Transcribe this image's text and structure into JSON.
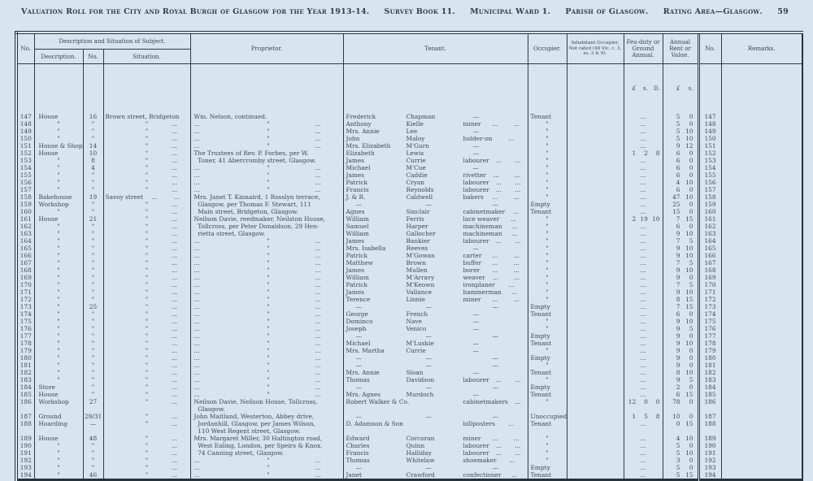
{
  "page": {
    "title_segments": [
      "Valuation Roll for the City and Royal Burgh of Glasgow for the Year 1913-14.",
      "Survey Book 11.",
      "Municipal Ward 1.",
      "Parish of Glasgow.",
      "Rating Area—Glasgow."
    ],
    "page_number": "59"
  },
  "table": {
    "header": {
      "no_left": "No.",
      "desc_sit_group": "Description and Situation of Subject.",
      "description": "Description.",
      "no_mid": "No.",
      "situation": "Situation.",
      "proprietor": "Proprietor.",
      "tenant": "Tenant.",
      "occupier": "Occupier.",
      "inhabitant": "Inhabitant Occupier, Not rated (48 Vic. c. 3, ss. 3 & 9).",
      "feu": "Feu-duty or Ground Annual.",
      "rent": "Annual Rent or Value.",
      "no_right": "No.",
      "remarks": "Remarks.",
      "feu_units": [
        "£",
        "s.",
        "D."
      ],
      "rent_units": [
        "£",
        "s."
      ]
    },
    "rows": [
      [
        "147",
        "House",
        "16",
        "Brown street, Bridgeton",
        "Wm. Nelson, continued.",
        "Frederick",
        "Chapman",
        "—",
        "Tenant",
        "...",
        "5 0",
        "147"
      ],
      [
        "148",
        "\"",
        "\"",
        "|\"|...",
        "...|\"|...",
        "Anthony",
        "Kielle",
        "miner|...|...",
        "\"",
        "...",
        "5 0",
        "148"
      ],
      [
        "149",
        "\"",
        "\"",
        "|\"|...",
        "...|\"|...",
        "Mrs. Annie",
        "Lee",
        "—",
        "\"",
        "...",
        "5 10",
        "149"
      ],
      [
        "150",
        "\"",
        "\"",
        "|\"|...",
        "...|\"|...",
        "John",
        "Maloy",
        "holder-on|...",
        "\"",
        "...",
        "5 10",
        "150"
      ],
      [
        "151",
        "House & Shop",
        "14",
        "|\"|...",
        "...|\"|...",
        "Mrs. Elizabeth",
        "M'Gurn",
        "—",
        "\"",
        "...",
        "9 12",
        "151"
      ],
      [
        "152",
        "House",
        "10",
        "|\"|...",
        "The Trustees of Rev. P. Forbes, per W.",
        "Elizabeth",
        "Lewis",
        "—",
        "\"",
        "1 2 8",
        "6 0",
        "152"
      ],
      [
        "153",
        "\"",
        "8",
        "|\"|...",
        "  Toner, 41 Abercromby street, Glasgow.",
        "James",
        "Currie",
        "labourer|...|...",
        "\"",
        "...",
        "6 0",
        "153"
      ],
      [
        "154",
        "\"",
        "4",
        "|\"|...",
        "...|\"|...",
        "Michael",
        "M'Cue",
        "—",
        "\"",
        "...",
        "6 0",
        "154"
      ],
      [
        "155",
        "\"",
        "\"",
        "|\"|...",
        "...|\"|...",
        "James",
        "Caddie",
        "rivetter|...|...",
        "\"",
        "...",
        "6 0",
        "155"
      ],
      [
        "156",
        "\"",
        "\"",
        "|\"|...",
        "...|\"|...",
        "Patrick",
        "Cryan",
        "labourer|...|...",
        "\"",
        "...",
        "4 10",
        "156"
      ],
      [
        "157",
        "\"",
        "\"",
        "|\"|...",
        "...|\"|...",
        "Francis",
        "Reynolds",
        "labourer|...|...",
        "\"",
        "...",
        "6 0",
        "157"
      ],
      [
        "158",
        "Bakehouse",
        "19",
        "Savoy street|...|...",
        "Mrs. Janet T. Kinnaird, 1 Rosslyn terrace,",
        "J. & R.",
        "Caldwell",
        "bakers|...|...",
        "\"",
        "...",
        "47 10",
        "158"
      ],
      [
        "159",
        "Workshop",
        "\"",
        "|\"|...",
        "  Glasgow, per Thomas F. Stewart, 111",
        "—",
        "—",
        "—",
        "Empty",
        "...",
        "25 0",
        "159"
      ],
      [
        "160",
        "\"",
        "\"",
        "|\"|...",
        "  Main street, Bridgeton, Glasgow.",
        "Agnes",
        "Sinclair",
        "cabinetmaker|...",
        "Tenant",
        "...",
        "15 0",
        "160"
      ],
      [
        "161",
        "House",
        "21",
        "|\"|...",
        "Neilson Davie, reedmaker, Neilston House,",
        "William",
        "Ferris",
        "lace weaver|...",
        "\"",
        "2 19 10",
        "7 15",
        "161"
      ],
      [
        "162",
        "\"",
        "\"",
        "|\"|...",
        "  Tollcross, per Peter Donaldson, 29 Hen-",
        "Samuel",
        "Harper",
        "machineman|...",
        "\"",
        "...",
        "6 0",
        "162"
      ],
      [
        "163",
        "\"",
        "\"",
        "|\"|...",
        "  rietta street, Glasgow.",
        "William",
        "Gallocher",
        "machineman|...",
        "\"",
        "...",
        "9 10",
        "163"
      ],
      [
        "164",
        "\"",
        "\"",
        "|\"|...",
        "...|\"|...",
        "James",
        "Bankier",
        "labourer|...|...",
        "\"",
        "...",
        "7 5",
        "164"
      ],
      [
        "165",
        "\"",
        "\"",
        "|\"|...",
        "...|\"|...",
        "Mrs. Isabella",
        "Reeves",
        "—",
        "\"",
        "...",
        "9 10",
        "165"
      ],
      [
        "166",
        "\"",
        "\"",
        "|\"|...",
        "...|\"|...",
        "Patrick",
        "M'Gowan",
        "carter|...|...",
        "\"",
        "...",
        "9 10",
        "166"
      ],
      [
        "167",
        "\"",
        "\"",
        "|\"|...",
        "...|\"|...",
        "Matthew",
        "Brown",
        "buffer|...|...",
        "\"",
        "...",
        "7 5",
        "167"
      ],
      [
        "168",
        "\"",
        "\"",
        "|\"|...",
        "...|\"|...",
        "James",
        "Mullen",
        "borer|...|...",
        "\"",
        "...",
        "9 10",
        "168"
      ],
      [
        "169",
        "\"",
        "\"",
        "|\"|...",
        "...|\"|...",
        "William",
        "M'Arravy",
        "weaver|...|...",
        "\"",
        "...",
        "9 0",
        "169"
      ],
      [
        "170",
        "\"",
        "\"",
        "|\"|...",
        "...|\"|...",
        "Patrick",
        "M'Keown",
        "ironplaner|...",
        "\"",
        "...",
        "7 5",
        "170"
      ],
      [
        "171",
        "\"",
        "\"",
        "|\"|...",
        "...|\"|...",
        "James",
        "Vallance",
        "hammerman|...",
        "\"",
        "...",
        "9 10",
        "171"
      ],
      [
        "172",
        "\"",
        "\"",
        "|\"|...",
        "...|\"|...",
        "Terence",
        "Linnie",
        "miner|...|...",
        "\"",
        "...",
        "8 15",
        "172"
      ],
      [
        "173",
        "\"",
        "25",
        "|\"|...",
        "...|\"|...",
        "—",
        "—",
        "—",
        "Empty",
        "...",
        "7 15",
        "173"
      ],
      [
        "174",
        "\"",
        "\"",
        "|\"|...",
        "...|\"|...",
        "George",
        "French",
        "—",
        "Tenant",
        "...",
        "6 0",
        "174"
      ],
      [
        "175",
        "\"",
        "\"",
        "|\"|...",
        "...|\"|...",
        "Dominco",
        "Nave",
        "—",
        "\"",
        "...",
        "9 10",
        "175"
      ],
      [
        "176",
        "\"",
        "\"",
        "|\"|...",
        "...|\"|...",
        "Joseph",
        "Venico",
        "—",
        "\"",
        "...",
        "9 5",
        "176"
      ],
      [
        "177",
        "\"",
        "\"",
        "|\"|...",
        "...|\"|...",
        "—",
        "—",
        "—",
        "Empty",
        "...",
        "9 0",
        "177"
      ],
      [
        "178",
        "\"",
        "\"",
        "|\"|...",
        "...|\"|...",
        "Michael",
        "M'Luskie",
        "—",
        "Tenant",
        "...",
        "9 10",
        "178"
      ],
      [
        "179",
        "\"",
        "\"",
        "|\"|...",
        "...|\"|...",
        "Mrs. Martha",
        "Currie",
        "—",
        "\"",
        "...",
        "9 0",
        "179"
      ],
      [
        "180",
        "\"",
        "\"",
        "|\"|...",
        "...|\"|...",
        "—",
        "—",
        "—",
        "Empty",
        "...",
        "9 0",
        "180"
      ],
      [
        "181",
        "\"",
        "\"",
        "|\"|...",
        "...|\"|...",
        "—",
        "—",
        "—",
        "\"",
        "...",
        "9 0",
        "181"
      ],
      [
        "182",
        "\"",
        "\"",
        "|\"|...",
        "...|\"|...",
        "Mrs. Annie",
        "Sloan",
        "—",
        "Tenant",
        "...",
        "8 10",
        "182"
      ],
      [
        "183",
        "\"",
        "\"",
        "|\"|...",
        "...|\"|...",
        "Thomas",
        "Davidson",
        "labourer|...|...",
        "\"",
        "...",
        "9 5",
        "183"
      ],
      [
        "184",
        "Store",
        "\"",
        "|\"|...",
        "...|\"|...",
        "—",
        "—",
        "—",
        "Empty",
        "...",
        "2 0",
        "184"
      ],
      [
        "185",
        "House",
        "\"",
        "|\"|...",
        "...|\"|...",
        "Mrs. Agnes",
        "Murdoch",
        "—",
        "Tenant",
        "...",
        "6 15",
        "185"
      ],
      [
        "186",
        "Workshop",
        "27",
        "|\"|...",
        "Neilson Davie, Neilson House, Tollcross,",
        "Robert Walker & Co.",
        "",
        "cabinetmakers|...",
        "\"",
        "12 0 0",
        "78 0",
        "186"
      ],
      [
        "",
        "",
        "",
        "",
        "  Glasgow.",
        "",
        "",
        "",
        "",
        "",
        "",
        ""
      ],
      [
        "187",
        "Ground",
        "29/31",
        "|\"|...",
        "John Maitland, Westerton, Abbey drive,",
        "—",
        "—",
        "—",
        "Unoccupied",
        "1 5 8",
        "10 0",
        "187"
      ],
      [
        "188",
        "Hoarding",
        "—",
        "|\"|...",
        "  Jordanhill, Glasgow, per James Wilson,",
        "D. Adamson & Son",
        "",
        "billposters|...",
        "Tenant",
        "...",
        "0 15",
        "188"
      ],
      [
        "",
        "",
        "",
        "",
        "  110 West Regent street, Glasgow.",
        "",
        "",
        "",
        "",
        "",
        "",
        ""
      ],
      [
        "189",
        "House",
        "48",
        "|\"|...",
        "Mrs. Margaret Miller, 30 Haltington road,",
        "Edward",
        "Corcoran",
        "miner|...|...",
        "\"",
        "...",
        "4 10",
        "189"
      ],
      [
        "190",
        "\"",
        "\"",
        "|\"|...",
        "  West Ealing, London, per Speirs & Knox,",
        "Charles",
        "Quinn",
        "labourer|...|...",
        "\"",
        "...",
        "5 0",
        "190"
      ],
      [
        "191",
        "\"",
        "\"",
        "|\"|...",
        "  74 Canning street, Glasgow.",
        "Francis",
        "Halliday",
        "labourer|...|...",
        "\"",
        "...",
        "5 10",
        "191"
      ],
      [
        "192",
        "\"",
        "\"",
        "|\"|...",
        "...|\"|...",
        "Thomas",
        "Whitelaw",
        "shoemaker|...",
        "\"",
        "...",
        "3 0",
        "192"
      ],
      [
        "193",
        "\"",
        "\"",
        "|\"|...",
        "...|\"|...",
        "—",
        "—",
        "—",
        "Empty",
        "...",
        "5 0",
        "193"
      ],
      [
        "194",
        "\"",
        "46",
        "|\"|...",
        "...|\"|...",
        "Janet",
        "Crawford",
        "confectioner|...",
        "Tenant",
        "...",
        "5 15",
        "194"
      ]
    ]
  }
}
